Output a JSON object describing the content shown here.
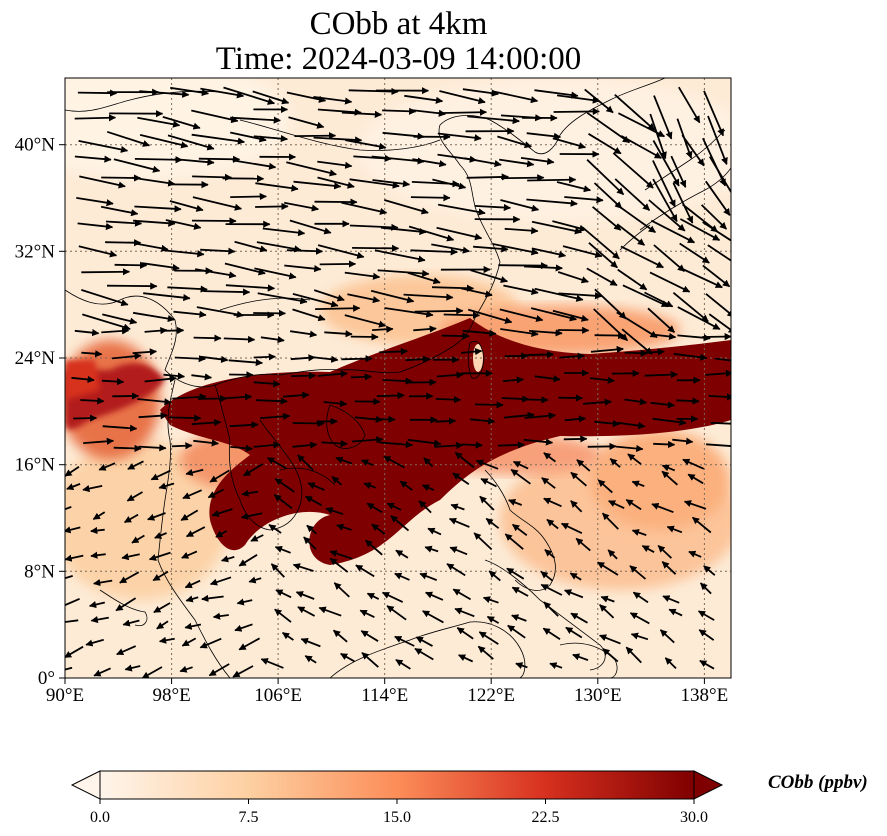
{
  "title": {
    "line1": "CObb at 4km",
    "line2": "Time: 2024-03-09 14:00:00"
  },
  "map": {
    "variable": "CObb",
    "level": "4km",
    "lon_range": [
      90,
      140
    ],
    "lat_range": [
      0,
      45
    ],
    "lon_ticks": [
      "90°E",
      "98°E",
      "106°E",
      "114°E",
      "122°E",
      "130°E",
      "138°E"
    ],
    "lat_ticks": [
      "0°",
      "8°N",
      "16°N",
      "24°N",
      "32°N",
      "40°N"
    ],
    "gridlines": true,
    "vectors": "wind arrows, mostly westerly in north and center, northeasterly in south"
  },
  "colorbar": {
    "label": "CObb (ppbv)",
    "ticks": [
      "0.0",
      "7.5",
      "15.0",
      "22.5",
      "30.0"
    ],
    "min": 0,
    "max": 30,
    "colormap": [
      "#fff5eb",
      "#fdd8a7",
      "#fc8d59",
      "#d7301f",
      "#7f0000"
    ],
    "extend": "both"
  }
}
